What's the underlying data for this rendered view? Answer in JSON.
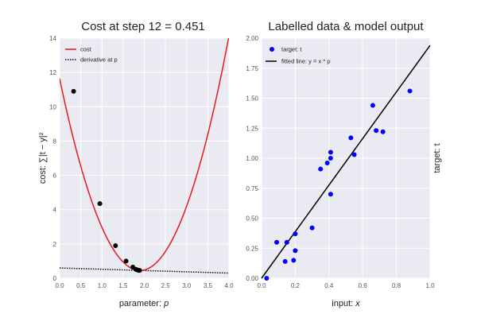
{
  "chart_data": [
    {
      "type": "line",
      "title": "Cost at step 12 = 0.451",
      "xlabel_prefix": "parameter: ",
      "xlabel_var": "p",
      "ylabel": "cost: ∑|t − y|²",
      "xlim": [
        0.0,
        4.0
      ],
      "ylim": [
        0,
        14
      ],
      "xticks": [
        "0.0",
        "0.5",
        "1.0",
        "1.5",
        "2.0",
        "2.5",
        "3.0",
        "3.5",
        "4.0"
      ],
      "yticks": [
        "0",
        "2",
        "4",
        "6",
        "8",
        "10",
        "12",
        "14"
      ],
      "grid": true,
      "legend_position": "top-left",
      "legend": [
        {
          "label": "cost",
          "style": "solid",
          "color": "#e41a1c"
        },
        {
          "label": "derivative at p",
          "style": "dotted",
          "color": "#111111"
        }
      ],
      "series": [
        {
          "name": "cost",
          "color": "#e41a1c",
          "curve": {
            "vertex_x": 1.9,
            "vertex_y": 0.451,
            "a": 3.1
          }
        },
        {
          "name": "derivative at p",
          "color": "#111111",
          "line": {
            "x": [
              0.0,
              4.0
            ],
            "y": [
              0.6,
              0.3
            ]
          }
        },
        {
          "name": "steps",
          "color": "#000000",
          "points": [
            {
              "x": 0.33,
              "y": 10.9
            },
            {
              "x": 0.95,
              "y": 4.35
            },
            {
              "x": 1.32,
              "y": 1.9
            },
            {
              "x": 1.57,
              "y": 1.0
            },
            {
              "x": 1.73,
              "y": 0.65
            },
            {
              "x": 1.8,
              "y": 0.52
            },
            {
              "x": 1.84,
              "y": 0.48
            },
            {
              "x": 1.87,
              "y": 0.46
            },
            {
              "x": 1.89,
              "y": 0.455
            }
          ]
        }
      ]
    },
    {
      "type": "scatter",
      "title": "Labelled data & model output",
      "xlabel_prefix": "input: ",
      "xlabel_var": "x",
      "ylabel": "target: t",
      "xlim": [
        0.0,
        1.0
      ],
      "ylim": [
        0.0,
        2.0
      ],
      "xticks": [
        "0.0",
        "0.2",
        "0.4",
        "0.6",
        "0.8",
        "1.0"
      ],
      "yticks": [
        "0.00",
        "0.25",
        "0.50",
        "0.75",
        "1.00",
        "1.25",
        "1.50",
        "1.75",
        "2.00"
      ],
      "grid": true,
      "legend_position": "top-left",
      "legend": [
        {
          "label": "target: t",
          "style": "marker",
          "color": "#0000ff"
        },
        {
          "label": "fitted line: y = x * p",
          "style": "solid",
          "color": "#000000"
        }
      ],
      "series": [
        {
          "name": "target: t",
          "color": "#0000ff",
          "points": [
            {
              "x": 0.03,
              "y": 0.0
            },
            {
              "x": 0.09,
              "y": 0.3
            },
            {
              "x": 0.14,
              "y": 0.14
            },
            {
              "x": 0.15,
              "y": 0.3
            },
            {
              "x": 0.19,
              "y": 0.15
            },
            {
              "x": 0.2,
              "y": 0.23
            },
            {
              "x": 0.2,
              "y": 0.37
            },
            {
              "x": 0.3,
              "y": 0.42
            },
            {
              "x": 0.35,
              "y": 0.91
            },
            {
              "x": 0.39,
              "y": 0.96
            },
            {
              "x": 0.41,
              "y": 1.0
            },
            {
              "x": 0.41,
              "y": 1.05
            },
            {
              "x": 0.41,
              "y": 0.7
            },
            {
              "x": 0.53,
              "y": 1.17
            },
            {
              "x": 0.55,
              "y": 1.03
            },
            {
              "x": 0.66,
              "y": 1.44
            },
            {
              "x": 0.68,
              "y": 1.23
            },
            {
              "x": 0.72,
              "y": 1.22
            },
            {
              "x": 0.88,
              "y": 1.56
            }
          ]
        },
        {
          "name": "fitted line: y = x * p",
          "color": "#000000",
          "line": {
            "x": [
              0.0,
              1.0
            ],
            "y": [
              0.0,
              1.94
            ]
          }
        }
      ]
    }
  ]
}
